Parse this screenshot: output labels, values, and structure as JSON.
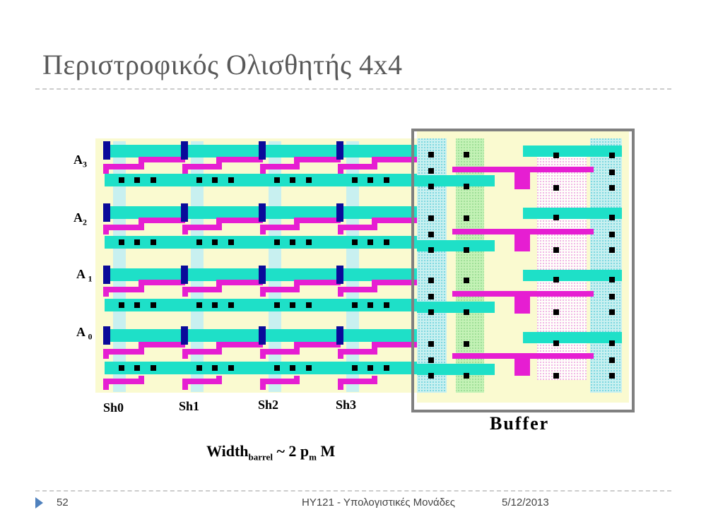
{
  "slide": {
    "title": "Περιστροφικός Ολισθητής 4x4",
    "inputs": [
      {
        "letter": "A",
        "index": "3"
      },
      {
        "letter": "A",
        "index": "2"
      },
      {
        "letter": "A",
        "index": "1"
      },
      {
        "letter": "A",
        "index": "0"
      }
    ],
    "shifts": [
      "Sh0",
      "Sh1",
      "Sh2",
      "Sh3"
    ],
    "buffer_label": "Buffer",
    "width_formula": {
      "base": "Width",
      "sub": "barrel",
      "rest": " ~ 2 p",
      "sub2": "m",
      "tail": " M"
    }
  },
  "footer": {
    "page_number": "52",
    "course": "ΗΥ121 - Υπολογιστικές Μονάδες",
    "date": "5/12/2013"
  },
  "colors": {
    "cyan": "#1ee0c8",
    "magenta": "#e61ed2",
    "navy": "#0a0a9a",
    "diffusion": "#fafad0",
    "poly_green": "#a8f0a0",
    "frame": "#808080"
  }
}
